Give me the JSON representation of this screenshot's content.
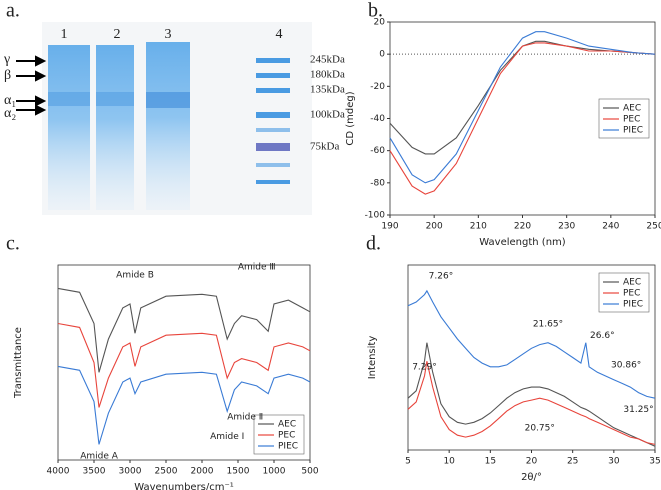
{
  "gel": {
    "panel_label": "a.",
    "lanes": [
      "1",
      "2",
      "3",
      "4"
    ],
    "markers": [
      "γ",
      "β",
      "α₁",
      "α₂"
    ],
    "ladder": [
      "245kDa",
      "180kDa",
      "135kDa",
      "100kDa",
      "75kDa"
    ]
  },
  "chart_data": [
    {
      "type": "line",
      "panel_label": "b.",
      "xlabel": "Wavelength (nm)",
      "ylabel": "CD (mdeg)",
      "zero_line": true,
      "legend": "right",
      "x": [
        190,
        195,
        198,
        200,
        205,
        210,
        215,
        220,
        223,
        225,
        230,
        235,
        240,
        245,
        250
      ],
      "xlim": [
        190,
        250
      ],
      "xticks": [
        190,
        200,
        210,
        220,
        230,
        240,
        250
      ],
      "ylim": [
        -100,
        20
      ],
      "yticks": [
        -100,
        -80,
        -60,
        -40,
        -20,
        0,
        20
      ],
      "series": [
        {
          "name": "AEC",
          "color": "#555555",
          "values": [
            -43,
            -58,
            -62,
            -62,
            -52,
            -32,
            -10,
            5,
            8,
            8,
            5,
            3,
            2,
            1,
            0
          ]
        },
        {
          "name": "PEC",
          "color": "#e8453c",
          "values": [
            -60,
            -82,
            -87,
            -85,
            -68,
            -40,
            -12,
            5,
            7,
            7,
            5,
            2,
            2,
            1,
            0
          ]
        },
        {
          "name": "PIEC",
          "color": "#3a7bd5",
          "values": [
            -52,
            -75,
            -80,
            -78,
            -62,
            -35,
            -8,
            10,
            14,
            14,
            10,
            5,
            3,
            1,
            0
          ]
        }
      ]
    },
    {
      "type": "line",
      "panel_label": "c.",
      "xlabel": "Wavenumbers/cm⁻¹",
      "ylabel": "Transmittance",
      "legend": "lower right",
      "reversed_x": true,
      "annotations": [
        "Amide B",
        "Amide Ⅲ",
        "Amide Ⅰ",
        "Amide Ⅱ",
        "Amide A"
      ],
      "x": [
        4000,
        3700,
        3500,
        3430,
        3300,
        3100,
        3000,
        2930,
        2850,
        2500,
        2000,
        1800,
        1650,
        1550,
        1450,
        1240,
        1080,
        1000,
        800,
        600,
        500
      ],
      "xlim": [
        4000,
        500
      ],
      "xticks": [
        4000,
        3500,
        3000,
        2500,
        2000,
        1500,
        1000,
        500
      ],
      "ylim": [
        0,
        100
      ],
      "series": [
        {
          "name": "AEC",
          "color": "#555555",
          "values": [
            88,
            86,
            70,
            45,
            62,
            78,
            80,
            65,
            78,
            84,
            85,
            84,
            62,
            70,
            74,
            72,
            66,
            80,
            82,
            78,
            76
          ]
        },
        {
          "name": "PEC",
          "color": "#e8453c",
          "values": [
            70,
            68,
            50,
            27,
            42,
            58,
            60,
            48,
            58,
            64,
            65,
            64,
            42,
            50,
            52,
            50,
            46,
            58,
            60,
            58,
            56
          ]
        },
        {
          "name": "PIEC",
          "color": "#3a7bd5",
          "values": [
            48,
            46,
            30,
            8,
            24,
            40,
            42,
            34,
            40,
            44,
            45,
            44,
            25,
            36,
            40,
            38,
            34,
            42,
            44,
            42,
            40
          ]
        }
      ]
    },
    {
      "type": "line",
      "panel_label": "d.",
      "xlabel": "2θ/°",
      "ylabel": "Intensity",
      "legend": "upper right",
      "annotations": [
        "7.26°",
        "21.65°",
        "26.6°",
        "30.86°",
        "7.29°",
        "20.75°",
        "31.25°"
      ],
      "x": [
        5,
        6,
        7,
        7.3,
        8,
        9,
        10,
        11,
        12,
        13,
        14,
        15,
        16,
        17,
        18,
        19,
        20,
        21,
        22,
        23,
        24,
        25,
        26,
        26.6,
        27,
        28,
        29,
        30,
        31,
        32,
        33,
        34,
        35
      ],
      "xlim": [
        5,
        35
      ],
      "xticks": [
        5,
        10,
        15,
        20,
        25,
        30,
        35
      ],
      "ylim": [
        0,
        100
      ],
      "series": [
        {
          "name": "AEC",
          "color": "#555555",
          "values": [
            28,
            32,
            48,
            58,
            42,
            25,
            18,
            15,
            14,
            15,
            17,
            20,
            24,
            28,
            31,
            33,
            34,
            34,
            33,
            31,
            29,
            26,
            23,
            22,
            21,
            18,
            15,
            12,
            10,
            8,
            6,
            4,
            2
          ]
        },
        {
          "name": "PEC",
          "color": "#e8453c",
          "values": [
            22,
            26,
            40,
            48,
            34,
            18,
            11,
            8,
            7,
            8,
            10,
            13,
            17,
            21,
            24,
            26,
            27,
            28,
            27,
            25,
            23,
            21,
            19,
            18,
            17,
            15,
            13,
            11,
            9,
            7,
            6,
            4,
            3
          ]
        },
        {
          "name": "PIEC",
          "color": "#3a7bd5",
          "values": [
            78,
            80,
            84,
            86,
            80,
            72,
            66,
            60,
            55,
            50,
            47,
            45,
            45,
            46,
            49,
            52,
            55,
            57,
            58,
            56,
            53,
            50,
            47,
            58,
            45,
            42,
            40,
            38,
            36,
            34,
            31,
            29,
            28
          ]
        }
      ]
    }
  ]
}
